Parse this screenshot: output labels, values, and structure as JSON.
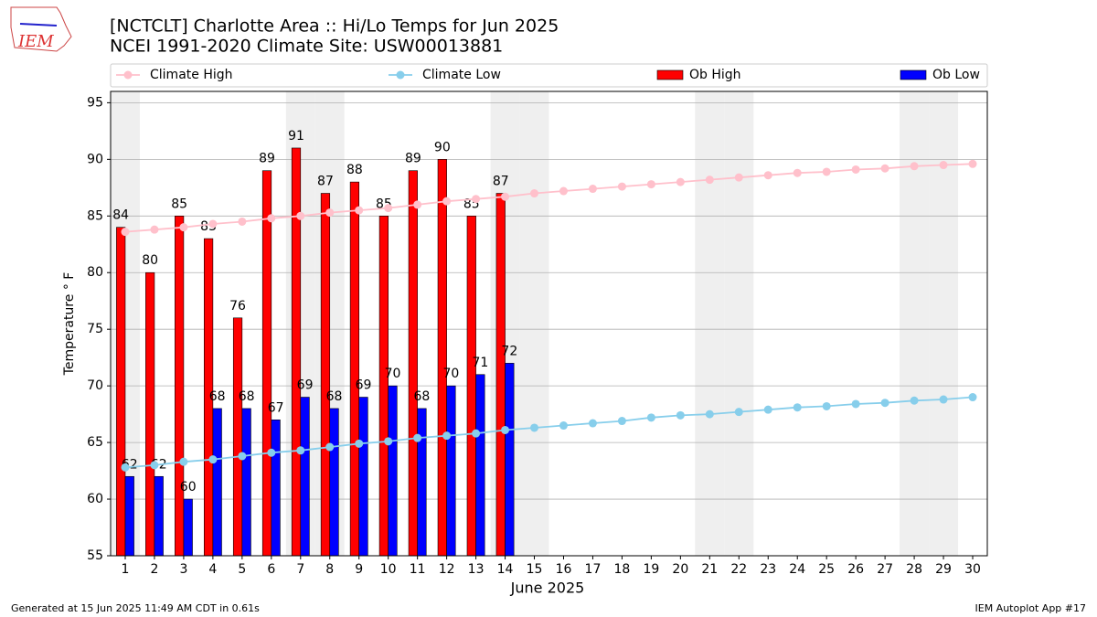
{
  "logo_text": "IEM",
  "footer_left": "Generated at 15 Jun 2025 11:49 AM CDT in 0.61s",
  "footer_right": "IEM Autoplot App #17",
  "chart_data": {
    "type": "bar",
    "title": "[NCTCLT] Charlotte Area :: Hi/Lo Temps for Jun 2025",
    "subtitle": "NCEI 1991-2020 Climate Site: USW00013881",
    "x_label": "June 2025",
    "y_label": "Temperature ° F",
    "x": [
      1,
      2,
      3,
      4,
      5,
      6,
      7,
      8,
      9,
      10,
      11,
      12,
      13,
      14,
      15,
      16,
      17,
      18,
      19,
      20,
      21,
      22,
      23,
      24,
      25,
      26,
      27,
      28,
      29,
      30
    ],
    "xlim": [
      0.5,
      30.5
    ],
    "xticks": [
      1,
      2,
      3,
      4,
      5,
      6,
      7,
      8,
      9,
      10,
      11,
      12,
      13,
      14,
      15,
      16,
      17,
      18,
      19,
      20,
      21,
      22,
      23,
      24,
      25,
      26,
      27,
      28,
      29,
      30
    ],
    "ylim": [
      55,
      96
    ],
    "yticks": [
      55,
      60,
      65,
      70,
      75,
      80,
      85,
      90,
      95
    ],
    "grid": true,
    "shaded_x": [
      1,
      7,
      8,
      14,
      15,
      21,
      22,
      28,
      29
    ],
    "shade_color": "#efefef",
    "legend": "top",
    "series": [
      {
        "name": "Climate High",
        "type": "line",
        "color": "pink",
        "values": [
          83.6,
          83.8,
          84.0,
          84.3,
          84.5,
          84.8,
          85.0,
          85.3,
          85.5,
          85.7,
          86.0,
          86.3,
          86.5,
          86.7,
          87.0,
          87.2,
          87.4,
          87.6,
          87.8,
          88.0,
          88.2,
          88.4,
          88.6,
          88.8,
          88.9,
          89.1,
          89.2,
          89.4,
          89.5,
          89.6
        ]
      },
      {
        "name": "Climate Low",
        "type": "line",
        "color": "skyblue",
        "values": [
          62.8,
          63.0,
          63.3,
          63.5,
          63.8,
          64.1,
          64.3,
          64.6,
          64.9,
          65.1,
          65.4,
          65.6,
          65.8,
          66.1,
          66.3,
          66.5,
          66.7,
          66.9,
          67.2,
          67.4,
          67.5,
          67.7,
          67.9,
          68.1,
          68.2,
          68.4,
          68.5,
          68.7,
          68.8,
          69.0
        ]
      },
      {
        "name": "Ob High",
        "type": "bar",
        "color": "#ff0000",
        "values": [
          84,
          80,
          85,
          83,
          76,
          89,
          91,
          87,
          88,
          85,
          89,
          90,
          85,
          87,
          null,
          null,
          null,
          null,
          null,
          null,
          null,
          null,
          null,
          null,
          null,
          null,
          null,
          null,
          null,
          null
        ]
      },
      {
        "name": "Ob Low",
        "type": "bar",
        "color": "#0000ff",
        "values": [
          62,
          62,
          60,
          68,
          68,
          67,
          69,
          68,
          69,
          70,
          68,
          70,
          71,
          72,
          null,
          null,
          null,
          null,
          null,
          null,
          null,
          null,
          null,
          null,
          null,
          null,
          null,
          null,
          null,
          null
        ]
      }
    ]
  }
}
